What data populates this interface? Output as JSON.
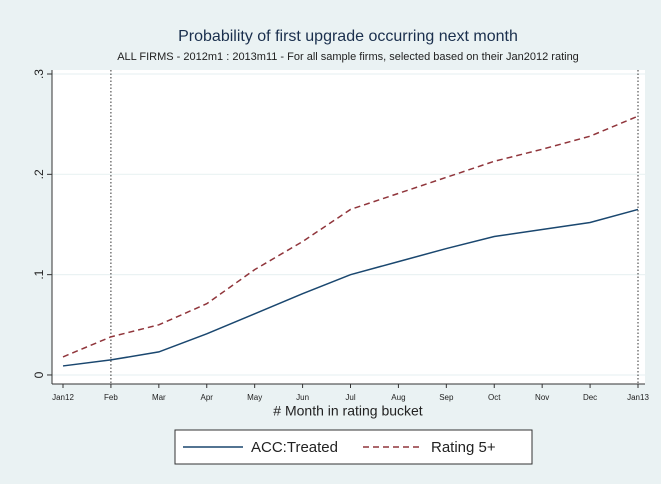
{
  "chart_data": {
    "type": "line",
    "title": "Probability of first upgrade occurring next month",
    "subtitle": "ALL FIRMS - 2012m1 : 2013m11 - For all sample firms, selected based on their Jan2012 rating",
    "x_label": "# Month in rating bucket",
    "categories": [
      "Jan12",
      "Feb",
      "Mar",
      "Apr",
      "May",
      "Jun",
      "Jul",
      "Aug",
      "Sep",
      "Oct",
      "Nov",
      "Dec",
      "Jan13"
    ],
    "series": [
      {
        "name": "ACC:Treated",
        "color": "#1a476f",
        "dash": "solid",
        "values": [
          0.009,
          0.015,
          0.023,
          0.041,
          0.061,
          0.081,
          0.1,
          0.113,
          0.126,
          0.138,
          0.145,
          0.152,
          0.165
        ]
      },
      {
        "name": "Rating 5+",
        "color": "#90353b",
        "dash": "dashed",
        "values": [
          0.018,
          0.038,
          0.05,
          0.071,
          0.105,
          0.133,
          0.165,
          0.181,
          0.197,
          0.213,
          0.225,
          0.238,
          0.258
        ]
      }
    ],
    "ylim": [
      -0.009,
      0.304
    ],
    "yticks": [
      0,
      {
        "value": 0.1,
        "label": ".1"
      },
      {
        "value": 0.2,
        "label": ".2"
      },
      {
        "value": 0.3,
        "label": ".3"
      }
    ],
    "grid": true,
    "vlines": [
      "Feb",
      "Jan13"
    ],
    "legend": "bottom"
  }
}
